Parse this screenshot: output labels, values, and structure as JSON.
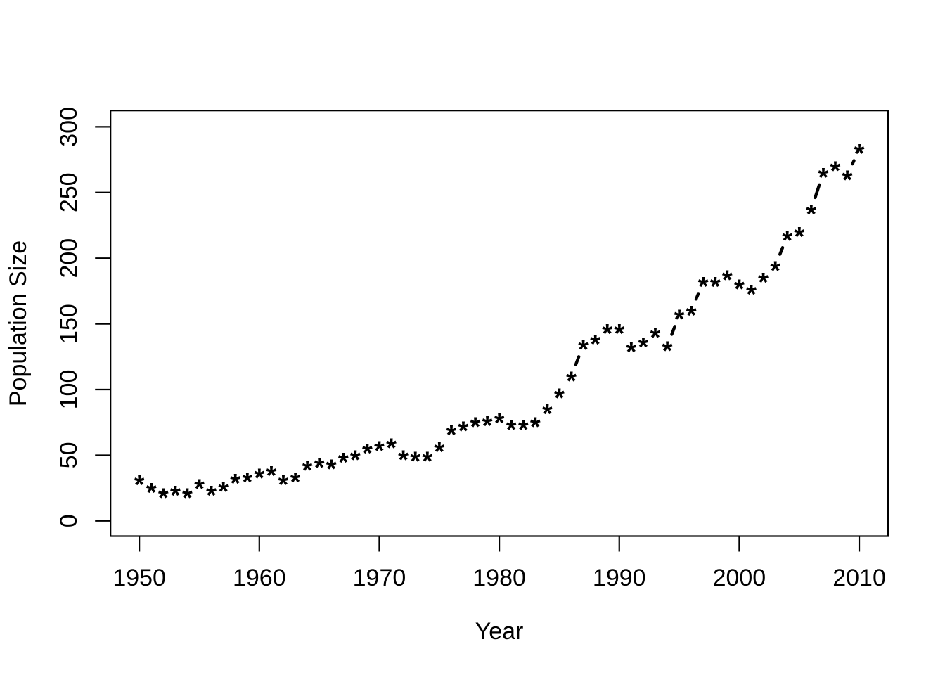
{
  "chart_data": {
    "type": "scatter",
    "subtype": "R-base-type-b-asterisk-points-with-gapped-connecting-segments",
    "title": "",
    "xlabel": "Year",
    "ylabel": "Population Size",
    "point_symbol": "*",
    "color": "#000000",
    "background": "#ffffff",
    "grid": false,
    "legend": null,
    "xlim": [
      1947.6,
      2012.4
    ],
    "ylim": [
      -11.6,
      312.4
    ],
    "xticks": [
      1950,
      1960,
      1970,
      1980,
      1990,
      2000,
      2010
    ],
    "yticks": [
      0,
      50,
      100,
      150,
      200,
      250,
      300
    ],
    "x": [
      1950,
      1951,
      1952,
      1953,
      1954,
      1955,
      1956,
      1957,
      1958,
      1959,
      1960,
      1961,
      1962,
      1963,
      1964,
      1965,
      1966,
      1967,
      1968,
      1969,
      1970,
      1971,
      1972,
      1973,
      1974,
      1975,
      1976,
      1977,
      1978,
      1979,
      1980,
      1981,
      1982,
      1983,
      1984,
      1985,
      1986,
      1987,
      1988,
      1989,
      1990,
      1991,
      1992,
      1993,
      1994,
      1995,
      1996,
      1997,
      1998,
      1999,
      2000,
      2001,
      2002,
      2003,
      2004,
      2005,
      2006,
      2007,
      2008,
      2009,
      2010
    ],
    "values": [
      31,
      25,
      21,
      23,
      21,
      28,
      23,
      26,
      32,
      33,
      36,
      38,
      31,
      33,
      42,
      44,
      43,
      48,
      50,
      55,
      57,
      59,
      50,
      49,
      49,
      56,
      69,
      72,
      75,
      76,
      78,
      73,
      73,
      75,
      85,
      97,
      110,
      134,
      138,
      146,
      146,
      132,
      136,
      143,
      133,
      157,
      160,
      182,
      182,
      187,
      180,
      176,
      185,
      194,
      217,
      220,
      237,
      265,
      270,
      263,
      283
    ]
  }
}
